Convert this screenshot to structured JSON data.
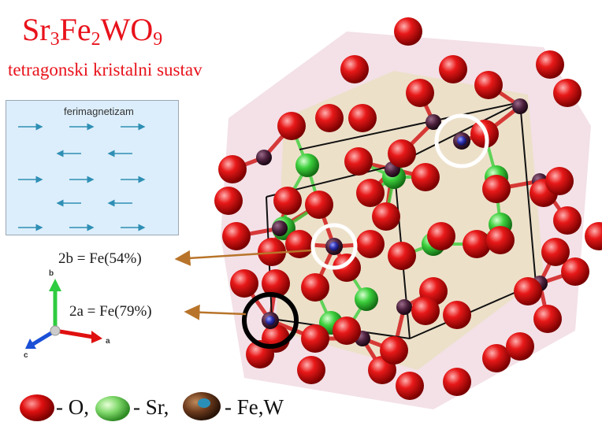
{
  "title": {
    "formula_parts": [
      "Sr",
      "3",
      "Fe",
      "2",
      "WO",
      "9"
    ],
    "subtitle": "tetragonski kristalni sustav"
  },
  "magnetism_panel": {
    "title": "ferimagnetizam",
    "rows": [
      {
        "direction": "right"
      },
      {
        "direction": "left"
      },
      {
        "direction": "right"
      },
      {
        "direction": "left"
      },
      {
        "direction": "right"
      }
    ],
    "arrow_color": "#2f8fb5"
  },
  "site_labels": [
    {
      "text": "2b = Fe(54%)",
      "highlight": "white"
    },
    {
      "text": "2a = Fe(79%)",
      "highlight": "black"
    }
  ],
  "axes": {
    "labels": [
      "a",
      "b",
      "c"
    ]
  },
  "legend": {
    "items": [
      {
        "text": "- O,",
        "color": "#e01010"
      },
      {
        "text": "- Sr,",
        "color": "#6fd35a"
      },
      {
        "text": "- Fe,W",
        "color": "#6b3a1c"
      }
    ]
  },
  "colors": {
    "title": "#e8121b",
    "oxygen": "#e01010",
    "strontium": "#3ccf3c",
    "iron_tungsten": "#5a2a4a",
    "callout_arrow": "#b8742a"
  }
}
